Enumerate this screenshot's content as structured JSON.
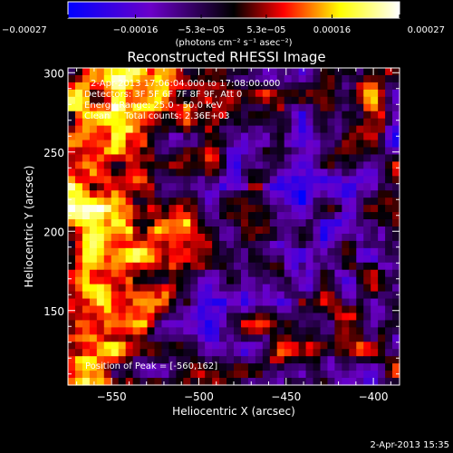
{
  "chart_data": {
    "type": "heatmap",
    "title": "Reconstructed RHESSI Image",
    "xlabel": "Heliocentric X (arcsec)",
    "ylabel": "Heliocentric Y (arcsec)",
    "xlim": [
      -575,
      -385
    ],
    "ylim": [
      103,
      303
    ],
    "x_ticks": [
      -550,
      -500,
      -450,
      -400
    ],
    "x_tick_labels": [
      "−550",
      "−500",
      "−450",
      "−400"
    ],
    "y_ticks": [
      150,
      200,
      250,
      300
    ],
    "y_tick_labels": [
      "150",
      "200",
      "250",
      "300"
    ],
    "colorbar": {
      "range": [
        -0.00027,
        0.00027
      ],
      "ticks": [
        -0.00027,
        -0.00016,
        -5.3e-05,
        5.3e-05,
        0.00016,
        0.00027
      ],
      "tick_labels": [
        "−0.00027",
        "−0.00016",
        "−5.3e−05",
        "5.3e−05",
        "0.00016",
        "0.00027"
      ],
      "unit_label": "(photons cm⁻² s⁻¹ asec⁻²)",
      "colors": [
        "#0000ff",
        "#6b00c8",
        "#000000",
        "#ff0000",
        "#ffff00",
        "#ffffff"
      ]
    },
    "annotations": {
      "time_range": "2-Apr-2013 17:06:04.000 to 17:08:00.000",
      "detectors": "Detectors: 3F 5F 6F 7F 8F 9F, Att 0",
      "energy": "Energy Range: 25.0 - 50.0 keV",
      "clean": "Clean     Total counts: 2.36E+03",
      "peak": "Position of Peak = [-560,162]"
    },
    "peak": [
      -560,
      162
    ],
    "grid": false
  },
  "footer": {
    "timestamp": "2-Apr-2013 15:35"
  }
}
